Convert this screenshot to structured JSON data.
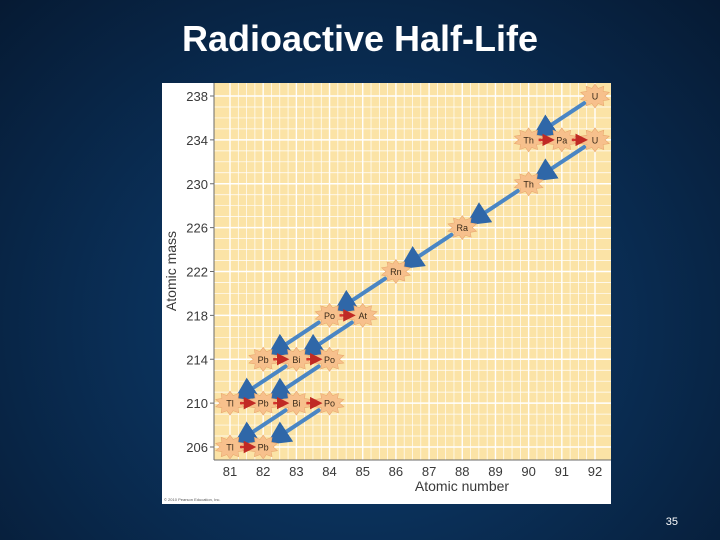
{
  "slide": {
    "title": "Radioactive Half-Life",
    "page_number": "35",
    "copyright": "© 2010 Pearson Education, Inc."
  },
  "chart_data": {
    "type": "scatter",
    "title": "",
    "xlabel": "Atomic number",
    "ylabel": "Atomic mass",
    "xlim": [
      81,
      92
    ],
    "ylim": [
      206,
      238
    ],
    "x_ticks": [
      81,
      82,
      83,
      84,
      85,
      86,
      87,
      88,
      89,
      90,
      91,
      92
    ],
    "y_ticks": [
      238,
      234,
      230,
      226,
      222,
      218,
      214,
      210,
      206
    ],
    "grid": true,
    "colors": {
      "plot_background": "#fbe3a6",
      "grid": "#ffffff",
      "nuclide_fill": "#f7c08c",
      "alpha_arrow": "#4a86c4",
      "beta_arrow": "#d3322c"
    },
    "nuclides": [
      {
        "label": "U",
        "x": 92,
        "y": 238
      },
      {
        "label": "Th",
        "x": 90,
        "y": 234
      },
      {
        "label": "Pa",
        "x": 91,
        "y": 234
      },
      {
        "label": "U",
        "x": 92,
        "y": 234
      },
      {
        "label": "Th",
        "x": 90,
        "y": 230
      },
      {
        "label": "Ra",
        "x": 88,
        "y": 226
      },
      {
        "label": "Rn",
        "x": 86,
        "y": 222
      },
      {
        "label": "Po",
        "x": 84,
        "y": 218
      },
      {
        "label": "At",
        "x": 85,
        "y": 218
      },
      {
        "label": "Pb",
        "x": 82,
        "y": 214
      },
      {
        "label": "Bi",
        "x": 83,
        "y": 214
      },
      {
        "label": "Po",
        "x": 84,
        "y": 214
      },
      {
        "label": "Tl",
        "x": 81,
        "y": 210
      },
      {
        "label": "Pb",
        "x": 82,
        "y": 210
      },
      {
        "label": "Bi",
        "x": 83,
        "y": 210
      },
      {
        "label": "Po",
        "x": 84,
        "y": 210
      },
      {
        "label": "Tl",
        "x": 81,
        "y": 206
      },
      {
        "label": "Pb",
        "x": 82,
        "y": 206
      }
    ],
    "alpha_decays": [
      {
        "from": [
          92,
          238
        ],
        "to": [
          90,
          234
        ]
      },
      {
        "from": [
          92,
          234
        ],
        "to": [
          90,
          230
        ]
      },
      {
        "from": [
          90,
          230
        ],
        "to": [
          88,
          226
        ]
      },
      {
        "from": [
          88,
          226
        ],
        "to": [
          86,
          222
        ]
      },
      {
        "from": [
          86,
          222
        ],
        "to": [
          84,
          218
        ]
      },
      {
        "from": [
          84,
          218
        ],
        "to": [
          82,
          214
        ]
      },
      {
        "from": [
          85,
          218
        ],
        "to": [
          83,
          214
        ]
      },
      {
        "from": [
          83,
          214
        ],
        "to": [
          81,
          210
        ]
      },
      {
        "from": [
          84,
          214
        ],
        "to": [
          82,
          210
        ]
      },
      {
        "from": [
          83,
          210
        ],
        "to": [
          81,
          206
        ]
      },
      {
        "from": [
          84,
          210
        ],
        "to": [
          82,
          206
        ]
      }
    ],
    "beta_decays": [
      {
        "from": [
          90,
          234
        ],
        "to": [
          91,
          234
        ]
      },
      {
        "from": [
          91,
          234
        ],
        "to": [
          92,
          234
        ]
      },
      {
        "from": [
          84,
          218
        ],
        "to": [
          85,
          218
        ]
      },
      {
        "from": [
          82,
          214
        ],
        "to": [
          83,
          214
        ]
      },
      {
        "from": [
          83,
          214
        ],
        "to": [
          84,
          214
        ]
      },
      {
        "from": [
          81,
          210
        ],
        "to": [
          82,
          210
        ]
      },
      {
        "from": [
          82,
          210
        ],
        "to": [
          83,
          210
        ]
      },
      {
        "from": [
          83,
          210
        ],
        "to": [
          84,
          210
        ]
      },
      {
        "from": [
          81,
          206
        ],
        "to": [
          82,
          206
        ]
      }
    ]
  }
}
